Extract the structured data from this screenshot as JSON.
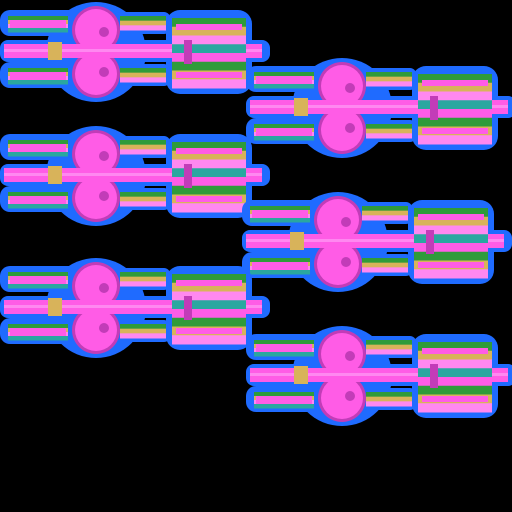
{
  "sheet": {
    "background": "#000000",
    "sprite_count": 6
  },
  "palette": {
    "glow": "#1f6bff",
    "glow_inner": "#3b8cff",
    "body": "#ff5ce6",
    "body_light": "#ff88f0",
    "body_dark": "#c23cb8",
    "stripe_green": "#2f9b3a",
    "stripe_gold": "#d8b35a",
    "stripe_teal": "#2aa7a0"
  },
  "sprites": [
    {
      "name": "key-sprite-1",
      "icon": "double-key-icon"
    },
    {
      "name": "key-sprite-2",
      "icon": "double-key-icon"
    },
    {
      "name": "key-sprite-3",
      "icon": "double-key-icon"
    },
    {
      "name": "key-sprite-4",
      "icon": "double-key-icon"
    },
    {
      "name": "key-sprite-5",
      "icon": "double-key-icon"
    },
    {
      "name": "key-sprite-6",
      "icon": "double-key-icon"
    }
  ]
}
